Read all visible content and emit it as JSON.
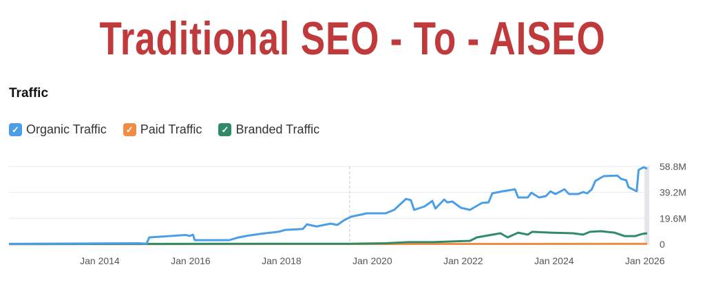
{
  "header": {
    "title": "Traditional SEO - To - AISEO"
  },
  "section_title": "Traffic",
  "legend": [
    {
      "label": "Organic Traffic",
      "color": "#4a9ee8",
      "checked": true
    },
    {
      "label": "Paid Traffic",
      "color": "#ef8c45",
      "checked": true
    },
    {
      "label": "Branded Traffic",
      "color": "#2e8b65",
      "checked": true
    }
  ],
  "chart_data": {
    "type": "line",
    "title": "Traffic",
    "xlabel": "",
    "ylabel": "",
    "xlim": [
      2012.0,
      2026.05
    ],
    "ylim": [
      0,
      58.8
    ],
    "x_ticks": [
      {
        "v": 2014,
        "label": "Jan 2014"
      },
      {
        "v": 2016,
        "label": "Jan 2016"
      },
      {
        "v": 2018,
        "label": "Jan 2018"
      },
      {
        "v": 2020,
        "label": "Jan 2020"
      },
      {
        "v": 2022,
        "label": "Jan 2022"
      },
      {
        "v": 2024,
        "label": "Jan 2024"
      },
      {
        "v": 2026,
        "label": "Jan 2026"
      }
    ],
    "y_ticks": [
      {
        "v": 0,
        "label": "0"
      },
      {
        "v": 19.6,
        "label": "19.6M"
      },
      {
        "v": 39.2,
        "label": "39.2M"
      },
      {
        "v": 58.8,
        "label": "58.8M"
      }
    ],
    "grid": true,
    "legend_position": "top-left",
    "marker_year": 2019.5,
    "series": [
      {
        "name": "Organic Traffic",
        "color": "#4a9ee8",
        "points": [
          [
            2012.0,
            0.3
          ],
          [
            2014.0,
            0.6
          ],
          [
            2014.83,
            0.8
          ],
          [
            2015.03,
            0.5
          ],
          [
            2015.09,
            5.2
          ],
          [
            2015.44,
            6.0
          ],
          [
            2015.89,
            7.0
          ],
          [
            2015.98,
            6.3
          ],
          [
            2016.05,
            7.3
          ],
          [
            2016.09,
            3.1
          ],
          [
            2016.85,
            3.1
          ],
          [
            2017.03,
            5.0
          ],
          [
            2017.26,
            6.5
          ],
          [
            2017.56,
            8.0
          ],
          [
            2017.94,
            9.5
          ],
          [
            2018.09,
            10.9
          ],
          [
            2018.47,
            11.6
          ],
          [
            2018.56,
            15.1
          ],
          [
            2018.77,
            13.5
          ],
          [
            2019.08,
            15.6
          ],
          [
            2019.23,
            14.6
          ],
          [
            2019.38,
            18.2
          ],
          [
            2019.53,
            20.8
          ],
          [
            2019.88,
            23.4
          ],
          [
            2020.29,
            23.4
          ],
          [
            2020.48,
            26
          ],
          [
            2020.74,
            34.3
          ],
          [
            2020.85,
            33.3
          ],
          [
            2020.92,
            26
          ],
          [
            2021.15,
            28.6
          ],
          [
            2021.32,
            32.8
          ],
          [
            2021.39,
            27
          ],
          [
            2021.58,
            33.8
          ],
          [
            2021.65,
            31.7
          ],
          [
            2021.76,
            32.3
          ],
          [
            2021.95,
            27.6
          ],
          [
            2022.15,
            26
          ],
          [
            2022.41,
            31.2
          ],
          [
            2022.56,
            31.7
          ],
          [
            2022.64,
            38.5
          ],
          [
            2022.86,
            40
          ],
          [
            2023.14,
            41.6
          ],
          [
            2023.21,
            35.4
          ],
          [
            2023.42,
            35.4
          ],
          [
            2023.5,
            39
          ],
          [
            2023.67,
            35.4
          ],
          [
            2023.82,
            36.4
          ],
          [
            2023.92,
            40
          ],
          [
            2024.03,
            38
          ],
          [
            2024.23,
            41.6
          ],
          [
            2024.33,
            38
          ],
          [
            2024.53,
            38
          ],
          [
            2024.64,
            39.5
          ],
          [
            2024.73,
            38.5
          ],
          [
            2024.83,
            41.6
          ],
          [
            2024.91,
            47.9
          ],
          [
            2025.09,
            51.5
          ],
          [
            2025.39,
            52
          ],
          [
            2025.48,
            49.4
          ],
          [
            2025.59,
            48.4
          ],
          [
            2025.64,
            43.2
          ],
          [
            2025.82,
            40
          ],
          [
            2025.86,
            56.2
          ],
          [
            2025.97,
            58.3
          ],
          [
            2026.05,
            57.2
          ]
        ]
      },
      {
        "name": "Paid Traffic",
        "color": "#ef8c45",
        "points": [
          [
            2012.0,
            0.1
          ],
          [
            2020.0,
            0.2
          ],
          [
            2026.05,
            0.3
          ]
        ]
      },
      {
        "name": "Branded Traffic",
        "color": "#2e8b65",
        "points": [
          [
            2012.0,
            0.2
          ],
          [
            2019.5,
            0.4
          ],
          [
            2020.3,
            0.8
          ],
          [
            2020.79,
            1.6
          ],
          [
            2021.3,
            1.6
          ],
          [
            2022.15,
            2.6
          ],
          [
            2022.3,
            5.2
          ],
          [
            2022.82,
            8.3
          ],
          [
            2022.98,
            5.2
          ],
          [
            2023.21,
            8.8
          ],
          [
            2023.42,
            7.3
          ],
          [
            2023.52,
            9.4
          ],
          [
            2023.92,
            8.8
          ],
          [
            2024.42,
            8.3
          ],
          [
            2024.64,
            7.3
          ],
          [
            2024.79,
            9.4
          ],
          [
            2025.03,
            9.9
          ],
          [
            2025.33,
            8.8
          ],
          [
            2025.55,
            6.2
          ],
          [
            2025.79,
            6.2
          ],
          [
            2025.94,
            7.8
          ],
          [
            2026.05,
            8.3
          ]
        ]
      }
    ]
  }
}
